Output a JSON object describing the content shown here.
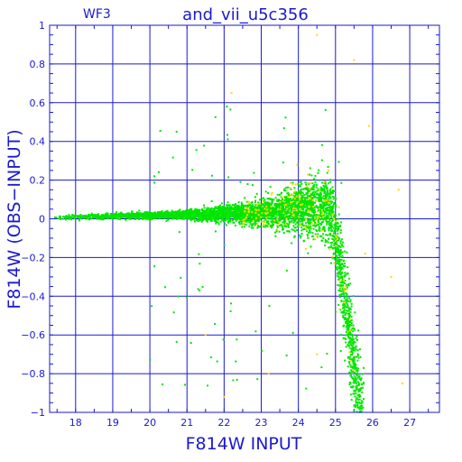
{
  "chart_data": {
    "type": "scatter",
    "title": "and_vii_u5c356",
    "corner_label": "WF3",
    "xlabel": "F814W INPUT",
    "ylabel": "F814W (OBS−INPUT)",
    "xlim": [
      17.3,
      27.8
    ],
    "ylim": [
      -1,
      1
    ],
    "x_ticks": [
      18,
      19,
      20,
      21,
      22,
      23,
      24,
      25,
      26,
      27
    ],
    "y_ticks": [
      -1,
      -0.8,
      -0.6,
      -0.4,
      -0.2,
      0,
      0.2,
      0.4,
      0.6,
      0.8,
      1
    ],
    "x_tick_labels": [
      "18",
      "19",
      "20",
      "21",
      "22",
      "23",
      "24",
      "25",
      "26",
      "27"
    ],
    "y_tick_labels": [
      "−1",
      "−0.8",
      "−0.6",
      "−0.4",
      "−0.2",
      "0",
      "0.2",
      "0.4",
      "0.6",
      "0.8",
      "1"
    ],
    "grid": true,
    "series": [
      {
        "color": "#00e600",
        "description_points": [
          {
            "x": 17.5,
            "y": 0.0
          },
          {
            "x": 18.0,
            "y": 0.01
          },
          {
            "x": 19.0,
            "y": 0.01
          },
          {
            "x": 20.0,
            "y": 0.01
          },
          {
            "x": 21.0,
            "y": 0.01
          },
          {
            "x": 22.0,
            "y": 0.02
          },
          {
            "x": 23.0,
            "y": 0.04
          },
          {
            "x": 23.5,
            "y": 0.08
          },
          {
            "x": 24.0,
            "y": 0.12
          },
          {
            "x": 24.3,
            "y": 0.3
          },
          {
            "x": 24.5,
            "y": 0.35
          },
          {
            "x": 24.8,
            "y": 0.1
          },
          {
            "x": 25.0,
            "y": -0.2
          },
          {
            "x": 25.2,
            "y": -0.5
          },
          {
            "x": 25.4,
            "y": -0.8
          },
          {
            "x": 25.6,
            "y": -0.95
          }
        ]
      },
      {
        "color": "#ffd700",
        "description_points": [
          {
            "x": 22.2,
            "y": 0.65
          },
          {
            "x": 24.5,
            "y": 0.95
          },
          {
            "x": 25.5,
            "y": 0.82
          },
          {
            "x": 25.9,
            "y": 0.48
          },
          {
            "x": 26.7,
            "y": 0.15
          },
          {
            "x": 25.8,
            "y": -0.18
          },
          {
            "x": 26.5,
            "y": -0.3
          },
          {
            "x": 22.0,
            "y": -0.92
          },
          {
            "x": 23.2,
            "y": -0.8
          },
          {
            "x": 24.5,
            "y": -0.7
          },
          {
            "x": 26.8,
            "y": -0.85
          },
          {
            "x": 21.5,
            "y": -0.6
          }
        ]
      }
    ]
  }
}
